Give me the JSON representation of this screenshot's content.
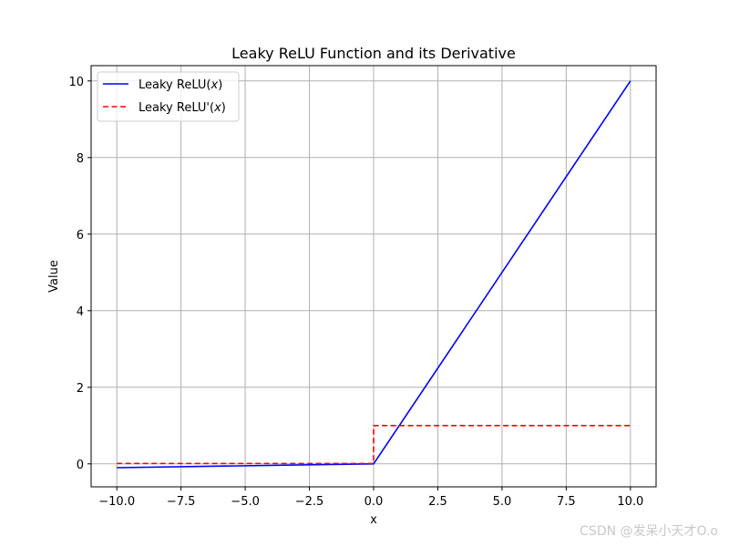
{
  "chart_data": {
    "type": "line",
    "title": "Leaky ReLU Function and its Derivative",
    "xlabel": "x",
    "ylabel": "Value",
    "xlim": [
      -11,
      11
    ],
    "ylim": [
      -0.6,
      10.4
    ],
    "x_ticks": [
      -10.0,
      -7.5,
      -5.0,
      -2.5,
      0.0,
      2.5,
      5.0,
      7.5,
      10.0
    ],
    "x_tick_labels": [
      "−10.0",
      "−7.5",
      "−5.0",
      "−2.5",
      "0.0",
      "2.5",
      "5.0",
      "7.5",
      "10.0"
    ],
    "y_ticks": [
      0,
      2,
      4,
      6,
      8,
      10
    ],
    "y_tick_labels": [
      "0",
      "2",
      "4",
      "6",
      "8",
      "10"
    ],
    "grid": true,
    "legend_position": "top-left",
    "series": [
      {
        "name": "Leaky ReLU(x)",
        "legend_prefix": "Leaky ReLU(",
        "legend_var": "x",
        "legend_suffix": ")",
        "color": "#0000ff",
        "style": "solid",
        "x": [
          -10,
          0,
          10
        ],
        "y": [
          -0.1,
          0,
          10
        ]
      },
      {
        "name": "Leaky ReLU'(x)",
        "legend_prefix": "Leaky ReLU'(",
        "legend_var": "x",
        "legend_suffix": ")",
        "color": "#ff0000",
        "style": "dashed",
        "x": [
          -10,
          0,
          0,
          10
        ],
        "y": [
          0.01,
          0.01,
          1,
          1
        ]
      }
    ]
  },
  "watermark": "CSDN @发呆小天才O.o"
}
